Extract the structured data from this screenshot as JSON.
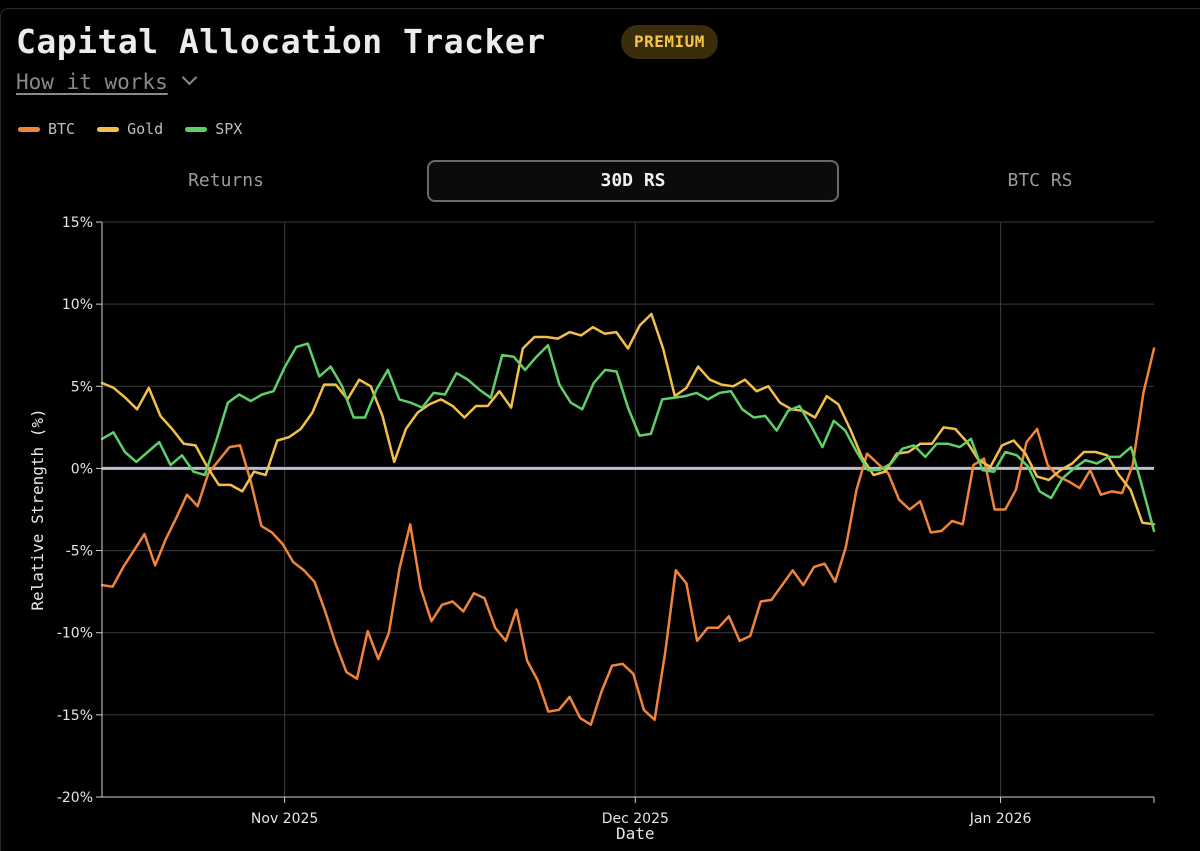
{
  "header": {
    "title": "Capital Allocation Tracker",
    "badge": "PREMIUM",
    "how_it_works": "How it works"
  },
  "legend": [
    {
      "label": "BTC",
      "color": "#f0843a"
    },
    {
      "label": "Gold",
      "color": "#f2bf49"
    },
    {
      "label": "SPX",
      "color": "#5fcf6a"
    }
  ],
  "tabs": [
    {
      "label": "Returns",
      "active": false
    },
    {
      "label": "30D RS",
      "active": true
    },
    {
      "label": "BTC RS",
      "active": false
    }
  ],
  "chart_data": {
    "type": "line",
    "title": "",
    "xlabel": "Date",
    "ylabel": "Relative Strength (%)",
    "ylim": [
      -20,
      15
    ],
    "y_ticks": [
      -20,
      -15,
      -10,
      -5,
      0,
      5,
      10,
      15
    ],
    "y_tick_labels": [
      "-20%",
      "-15%",
      "-10%",
      "-5%",
      "0%",
      "5%",
      "10%",
      "15%"
    ],
    "x_ticks": [
      25,
      73,
      123
    ],
    "x_tick_labels": [
      "Nov 2025",
      "Dec 2025",
      "Jan 2026"
    ],
    "x_range": [
      0,
      144
    ],
    "zero_line": 0,
    "grid": true,
    "series": [
      {
        "name": "BTC",
        "color": "#f0843a",
        "values": [
          -7.1,
          -7.2,
          -6.0,
          -5.0,
          -4.0,
          -5.9,
          -4.3,
          -3.0,
          -1.6,
          -2.3,
          -0.3,
          0.5,
          1.3,
          1.4,
          -0.8,
          -3.5,
          -3.9,
          -4.6,
          -5.7,
          -6.2,
          -6.9,
          -8.7,
          -10.7,
          -12.4,
          -12.8,
          -9.9,
          -11.6,
          -10.0,
          -6.1,
          -3.4,
          -7.3,
          -9.3,
          -8.3,
          -8.1,
          -8.7,
          -7.6,
          -7.9,
          -9.7,
          -10.5,
          -8.6,
          -11.7,
          -12.9,
          -14.8,
          -14.7,
          -13.9,
          -15.2,
          -15.6,
          -13.6,
          -12.0,
          -11.9,
          -12.5,
          -14.7,
          -15.3,
          -11.2,
          -6.2,
          -7.0,
          -10.5,
          -9.7,
          -9.7,
          -9.0,
          -10.5,
          -10.2,
          -8.1,
          -8.0,
          -7.1,
          -6.2,
          -7.1,
          -6.0,
          -5.8,
          -6.9,
          -4.8,
          -1.3,
          0.9,
          0.3,
          -0.3,
          -1.9,
          -2.5,
          -2.0,
          -3.9,
          -3.8,
          -3.2,
          -3.4,
          0.2,
          0.6,
          -2.5,
          -2.5,
          -1.3,
          1.6,
          2.4,
          0.2,
          -0.5,
          -0.8,
          -1.2,
          -0.1,
          -1.6,
          -1.4,
          -1.5,
          0.2,
          4.6,
          7.3
        ]
      },
      {
        "name": "Gold",
        "color": "#f2bf49",
        "values": [
          5.2,
          4.9,
          4.3,
          3.6,
          4.9,
          3.2,
          2.4,
          1.5,
          1.4,
          0.1,
          -1.0,
          -1.0,
          -1.4,
          -0.2,
          -0.4,
          1.7,
          1.9,
          2.4,
          3.4,
          5.1,
          5.1,
          4.2,
          5.4,
          5.0,
          3.2,
          0.4,
          2.4,
          3.4,
          3.9,
          4.2,
          3.8,
          3.1,
          3.8,
          3.8,
          4.7,
          3.7,
          7.3,
          8.0,
          8.0,
          7.9,
          8.3,
          8.1,
          8.6,
          8.2,
          8.3,
          7.3,
          8.7,
          9.4,
          7.3,
          4.4,
          4.9,
          6.2,
          5.4,
          5.1,
          5.0,
          5.4,
          4.7,
          5.0,
          4.0,
          3.6,
          3.5,
          3.1,
          4.4,
          3.9,
          2.4,
          0.7,
          -0.4,
          -0.2,
          0.9,
          1.0,
          1.5,
          1.5,
          2.5,
          2.4,
          1.6,
          0.5,
          0.1,
          1.4,
          1.7,
          0.9,
          -0.5,
          -0.7,
          -0.1,
          0.3,
          1.0,
          1.0,
          0.8,
          -0.4,
          -1.3,
          -3.3,
          -3.4
        ]
      },
      {
        "name": "SPX",
        "color": "#5fcf6a",
        "values": [
          1.8,
          2.2,
          1.0,
          0.4,
          1.0,
          1.6,
          0.2,
          0.8,
          -0.2,
          -0.4,
          1.7,
          4.0,
          4.5,
          4.1,
          4.5,
          4.7,
          6.2,
          7.4,
          7.6,
          5.6,
          6.2,
          5.0,
          3.1,
          3.1,
          4.8,
          6.0,
          4.2,
          4.0,
          3.7,
          4.6,
          4.5,
          5.8,
          5.4,
          4.8,
          4.3,
          6.9,
          6.8,
          6.0,
          6.8,
          7.5,
          5.1,
          4.0,
          3.6,
          5.2,
          6.0,
          5.9,
          3.7,
          2.0,
          2.1,
          4.2,
          4.3,
          4.4,
          4.6,
          4.2,
          4.6,
          4.7,
          3.6,
          3.1,
          3.2,
          2.3,
          3.5,
          3.8,
          2.6,
          1.3,
          2.9,
          2.3,
          1.0,
          -0.1,
          -0.1,
          0.3,
          1.2,
          1.4,
          0.7,
          1.5,
          1.5,
          1.3,
          1.8,
          -0.1,
          -0.2,
          1.0,
          0.8,
          0.1,
          -1.4,
          -1.8,
          -0.6,
          0.0,
          0.5,
          0.3,
          0.7,
          0.7,
          1.3,
          -1.2,
          -3.8
        ]
      }
    ]
  }
}
